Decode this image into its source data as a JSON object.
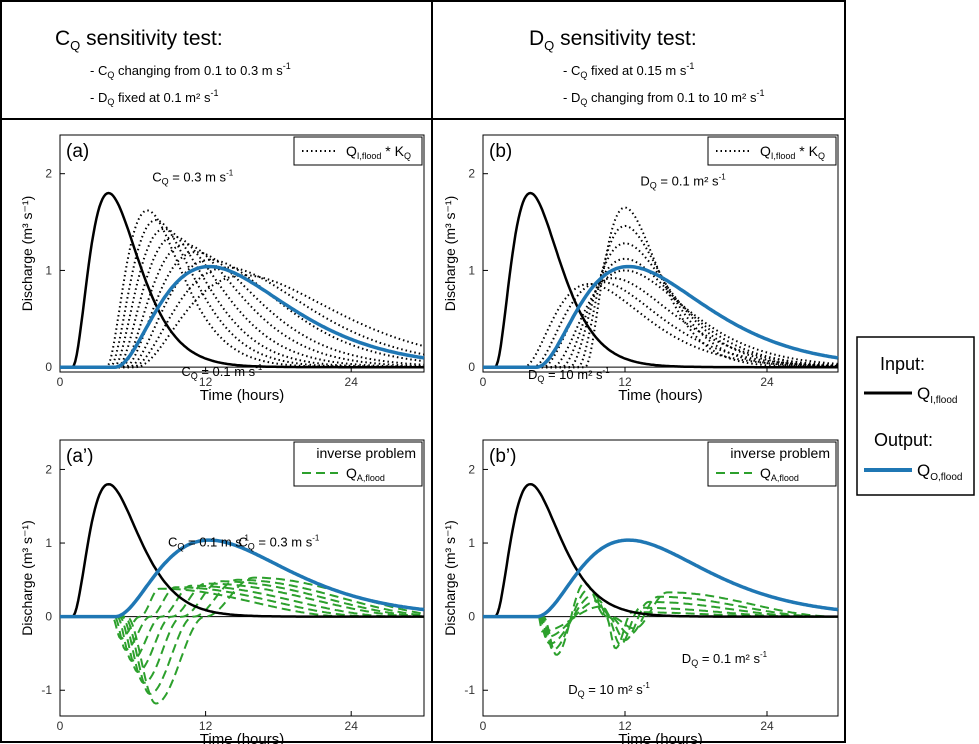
{
  "header": {
    "left": {
      "title_main": "C",
      "title_sub": "Q",
      "title_rest": " sensitivity test:",
      "bullet1": {
        "pre": "- C",
        "sub": "Q",
        "post": " changing from 0.1 to 0.3 m s",
        "sup": "-1"
      },
      "bullet2": {
        "pre": "- D",
        "sub": "Q",
        "post": " fixed at 0.1 m² s",
        "sup": "-1"
      }
    },
    "right": {
      "title_main": "D",
      "title_sub": "Q",
      "title_rest": " sensitivity test:",
      "bullet1": {
        "pre": "- C",
        "sub": "Q",
        "post": " fixed at 0.15 m s",
        "sup": "-1"
      },
      "bullet2": {
        "pre": "- D",
        "sub": "Q",
        "post": " changing from 0.1 to 10 m² s",
        "sup": "-1"
      }
    }
  },
  "legend_box": {
    "input_title": "Input:",
    "input_label": "Q",
    "input_sub": "I,flood",
    "input_color": "#000000",
    "output_title": "Output:",
    "output_label": "Q",
    "output_sub": "O,flood",
    "output_color": "#1f77b4"
  },
  "chart_data": [
    {
      "type": "line",
      "panel": "(a)",
      "xlabel": "Time (hours)",
      "ylabel": "Discharge (m³ s⁻¹)",
      "xlim": [
        0,
        30
      ],
      "ylim": [
        -0.05,
        2.4
      ],
      "xticks": [
        0,
        12,
        24
      ],
      "yticks": [
        0,
        1,
        2
      ],
      "legend": {
        "label": "Q",
        "sub": "I,flood",
        "suffix": " * K",
        "suffix_sub": "Q",
        "style": "dotted",
        "placement": "top-right"
      },
      "series": [
        {
          "role": "input",
          "peak_t": 4,
          "peak_q": 1.8,
          "start_t": 1.0,
          "color": "#000000"
        },
        {
          "role": "output",
          "peak_t": 12.3,
          "peak_q": 1.04,
          "start_t": 4.5,
          "color": "#1f77b4"
        }
      ],
      "family": {
        "style": "dotted",
        "color": "#000000",
        "members": [
          {
            "peak_t": 7.2,
            "peak_q": 1.62,
            "start_t": 3.8
          },
          {
            "peak_t": 7.9,
            "peak_q": 1.52,
            "start_t": 4.1
          },
          {
            "peak_t": 8.6,
            "peak_q": 1.43,
            "start_t": 4.4
          },
          {
            "peak_t": 9.4,
            "peak_q": 1.35,
            "start_t": 4.7
          },
          {
            "peak_t": 10.3,
            "peak_q": 1.27,
            "start_t": 5.0
          },
          {
            "peak_t": 11.2,
            "peak_q": 1.19,
            "start_t": 5.3
          },
          {
            "peak_t": 12.4,
            "peak_q": 1.11,
            "start_t": 5.6
          },
          {
            "peak_t": 13.8,
            "peak_q": 1.03,
            "start_t": 5.9
          },
          {
            "peak_t": 15.2,
            "peak_q": 0.95,
            "start_t": 6.2
          }
        ]
      },
      "annotations": [
        {
          "pre": "C",
          "sub": "Q",
          "post": " = 0.3 m s",
          "sup": "-1",
          "x": 7.6,
          "y": 1.92
        },
        {
          "pre": "C",
          "sub": "Q",
          "post": " = 0.1 m s",
          "sup": "-1",
          "x": 10.0,
          "y": -0.09
        }
      ]
    },
    {
      "type": "line",
      "panel": "(b)",
      "xlabel": "Time (hours)",
      "ylabel": "Discharge (m³ s⁻¹)",
      "xlim": [
        0,
        30
      ],
      "ylim": [
        -0.05,
        2.4
      ],
      "xticks": [
        0,
        12,
        24
      ],
      "yticks": [
        0,
        1,
        2
      ],
      "legend": {
        "label": "Q",
        "sub": "I,flood",
        "suffix": " * K",
        "suffix_sub": "Q",
        "style": "dotted",
        "placement": "top-right"
      },
      "series": [
        {
          "role": "input",
          "peak_t": 4,
          "peak_q": 1.8,
          "start_t": 1.0,
          "color": "#000000"
        },
        {
          "role": "output",
          "peak_t": 12.3,
          "peak_q": 1.04,
          "start_t": 4.5,
          "color": "#1f77b4"
        }
      ],
      "family": {
        "style": "dotted",
        "color": "#000000",
        "members": [
          {
            "peak_t": 12.0,
            "peak_q": 1.65,
            "start_t": 8.6
          },
          {
            "peak_t": 12.0,
            "peak_q": 1.46,
            "start_t": 8.0
          },
          {
            "peak_t": 12.0,
            "peak_q": 1.28,
            "start_t": 7.3
          },
          {
            "peak_t": 12.0,
            "peak_q": 1.12,
            "start_t": 6.6
          },
          {
            "peak_t": 12.0,
            "peak_q": 1.0,
            "start_t": 5.8
          },
          {
            "peak_t": 11.0,
            "peak_q": 0.92,
            "start_t": 5.0
          },
          {
            "peak_t": 10.0,
            "peak_q": 0.88,
            "start_t": 4.2
          },
          {
            "peak_t": 9.0,
            "peak_q": 0.86,
            "start_t": 3.4
          }
        ]
      },
      "annotations": [
        {
          "pre": "D",
          "sub": "Q",
          "post": " = 0.1 m² s",
          "sup": "-1",
          "x": 13.3,
          "y": 1.88
        },
        {
          "pre": "D",
          "sub": "Q",
          "post": " = 10 m² s",
          "sup": "-1",
          "x": 3.8,
          "y": -0.12
        }
      ]
    },
    {
      "type": "line",
      "panel": "(a’)",
      "xlabel": "Time (hours)",
      "ylabel": "Discharge (m³ s⁻¹)",
      "xlim": [
        0,
        30
      ],
      "ylim": [
        -1.35,
        2.4
      ],
      "xticks": [
        0,
        12,
        24
      ],
      "yticks": [
        -1,
        0,
        1,
        2
      ],
      "legend": {
        "title": "inverse problem",
        "label": "Q",
        "sub": "A,flood",
        "style": "dashed",
        "color": "#2ca02c",
        "placement": "top-right"
      },
      "series": [
        {
          "role": "input",
          "peak_t": 4,
          "peak_q": 1.8,
          "start_t": 1.0,
          "color": "#000000"
        },
        {
          "role": "output",
          "peak_t": 12.3,
          "peak_q": 1.04,
          "start_t": 4.5,
          "color": "#1f77b4"
        }
      ],
      "family": {
        "style": "dashed",
        "color": "#2ca02c",
        "members": [
          {
            "t1": 4.3,
            "neg_t": 5.0,
            "neg_q": -0.3,
            "pos_t": 8.2,
            "pos_q": 0.38,
            "end_t": 24
          },
          {
            "t1": 4.5,
            "neg_t": 5.4,
            "neg_q": -0.45,
            "pos_t": 9.5,
            "pos_q": 0.4,
            "end_t": 26
          },
          {
            "t1": 4.7,
            "neg_t": 5.9,
            "neg_q": -0.6,
            "pos_t": 10.8,
            "pos_q": 0.42,
            "end_t": 28
          },
          {
            "t1": 4.9,
            "neg_t": 6.4,
            "neg_q": -0.75,
            "pos_t": 12.0,
            "pos_q": 0.45,
            "end_t": 30
          },
          {
            "t1": 5.1,
            "neg_t": 6.9,
            "neg_q": -0.9,
            "pos_t": 13.2,
            "pos_q": 0.48,
            "end_t": 31
          },
          {
            "t1": 5.3,
            "neg_t": 7.4,
            "neg_q": -1.05,
            "pos_t": 14.6,
            "pos_q": 0.5,
            "end_t": 32
          },
          {
            "t1": 5.5,
            "neg_t": 7.9,
            "neg_q": -1.18,
            "pos_t": 16.0,
            "pos_q": 0.53,
            "end_t": 33
          }
        ]
      },
      "annotations": [
        {
          "pre": "C",
          "sub": "Q",
          "post": " = 0.1 m s",
          "sup": "-1",
          "x": 8.9,
          "y": 0.95
        },
        {
          "pre": "C",
          "sub": "Q",
          "post": " = 0.3 m s",
          "sup": "-1",
          "x": 14.7,
          "y": 0.95
        }
      ]
    },
    {
      "type": "line",
      "panel": "(b’)",
      "xlabel": "Time (hours)",
      "ylabel": "Discharge (m³ s⁻¹)",
      "xlim": [
        0,
        30
      ],
      "ylim": [
        -1.35,
        2.4
      ],
      "xticks": [
        0,
        12,
        24
      ],
      "yticks": [
        -1,
        0,
        1,
        2
      ],
      "legend": {
        "title": "inverse problem",
        "label": "Q",
        "sub": "A,flood",
        "style": "dashed",
        "color": "#2ca02c",
        "placement": "top-right"
      },
      "series": [
        {
          "role": "input",
          "peak_t": 4,
          "peak_q": 1.8,
          "start_t": 1.0,
          "color": "#000000"
        },
        {
          "role": "output",
          "peak_t": 12.3,
          "peak_q": 1.04,
          "start_t": 4.5,
          "color": "#1f77b4"
        }
      ],
      "family": {
        "style": "dashed",
        "color": "#2ca02c",
        "members": [
          {
            "t1": 5.1,
            "neg_t": 6.2,
            "neg_q": -0.52,
            "pos_t": 8.6,
            "pos_q": 0.46,
            "mid_t": 10.4,
            "mid_q": 0.0,
            "neg2_t": 11.2,
            "neg2_q": -0.43,
            "pos2_t": 12.6,
            "pos2_q": 0.06,
            "end_t": 26
          },
          {
            "t1": 5.0,
            "neg_t": 5.9,
            "neg_q": -0.45,
            "pos_t": 9.0,
            "pos_q": 0.38,
            "mid_t": 10.5,
            "mid_q": 0.0,
            "neg2_t": 11.6,
            "neg2_q": -0.38,
            "pos2_t": 13.3,
            "pos2_q": 0.12,
            "end_t": 27
          },
          {
            "t1": 4.9,
            "neg_t": 5.6,
            "neg_q": -0.37,
            "pos_t": 9.4,
            "pos_q": 0.3,
            "mid_t": 10.6,
            "mid_q": 0.0,
            "neg2_t": 12.0,
            "neg2_q": -0.32,
            "pos2_t": 14.0,
            "pos2_q": 0.2,
            "end_t": 28
          },
          {
            "t1": 4.8,
            "neg_t": 5.3,
            "neg_q": -0.28,
            "pos_t": 9.8,
            "pos_q": 0.22,
            "mid_t": 10.7,
            "mid_q": 0.0,
            "neg2_t": 12.4,
            "neg2_q": -0.24,
            "pos2_t": 14.8,
            "pos2_q": 0.27,
            "end_t": 29
          },
          {
            "t1": 4.7,
            "neg_t": 5.0,
            "neg_q": -0.2,
            "pos_t": 10.1,
            "pos_q": 0.14,
            "mid_t": 10.8,
            "mid_q": 0.0,
            "neg2_t": 12.8,
            "neg2_q": -0.16,
            "pos2_t": 15.6,
            "pos2_q": 0.33,
            "end_t": 30
          }
        ]
      },
      "annotations": [
        {
          "pre": "D",
          "sub": "Q",
          "post": " = 0.1 m² s",
          "sup": "-1",
          "x": 16.8,
          "y": -0.63
        },
        {
          "pre": "D",
          "sub": "Q",
          "post": " = 10 m² s",
          "sup": "-1",
          "x": 7.2,
          "y": -1.05
        }
      ]
    }
  ]
}
